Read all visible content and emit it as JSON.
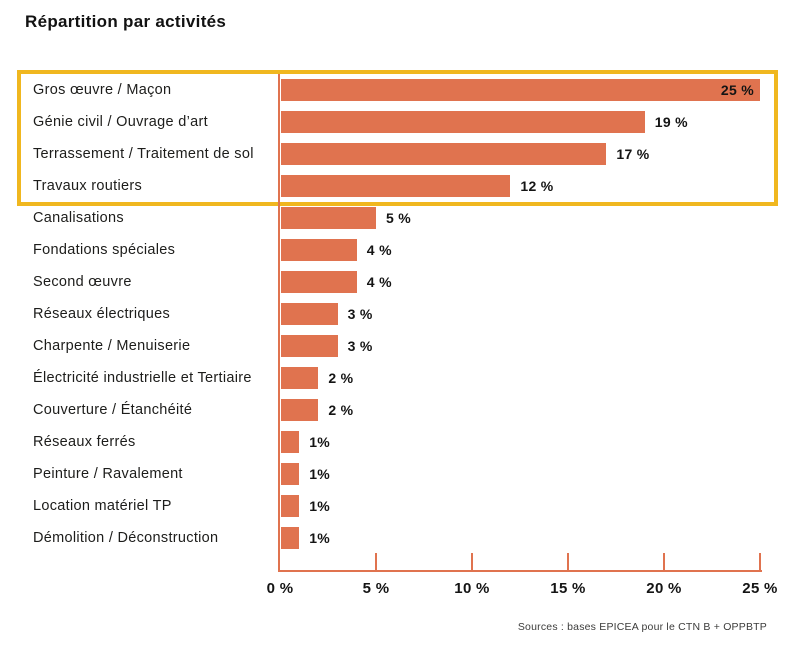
{
  "title": "Répartition par activités",
  "source": "Sources : bases EPICEA pour le CTN B + OPPBTP",
  "colors": {
    "bar": "#E0734F",
    "axis": "#E0734F",
    "highlight_box": "#F0B71F",
    "text": "#1D1D1B"
  },
  "chart_data": {
    "type": "bar",
    "orientation": "horizontal",
    "title": "Répartition par activités",
    "xlabel": "",
    "ylabel": "",
    "xlim": [
      0,
      25
    ],
    "grid": false,
    "legend": false,
    "categories": [
      "Gros œuvre / Maçon",
      "Génie civil / Ouvrage d’art",
      "Terrassement / Traitement de sol",
      "Travaux routiers",
      "Canalisations",
      "Fondations spéciales",
      "Second œuvre",
      "Réseaux électriques",
      "Charpente / Menuiserie",
      "Électricité industrielle et Tertiaire",
      "Couverture / Étanchéité",
      "Réseaux ferrés",
      "Peinture / Ravalement",
      "Location matériel TP",
      "Démolition / Déconstruction"
    ],
    "values": [
      25,
      19,
      17,
      12,
      5,
      4,
      4,
      3,
      3,
      2,
      2,
      1,
      1,
      1,
      1
    ],
    "value_labels": [
      "25 %",
      "19 %",
      "17 %",
      "12 %",
      "5 %",
      "4 %",
      "4 %",
      "3 %",
      "3 %",
      "2 %",
      "2 %",
      "1%",
      "1%",
      "1%",
      "1%"
    ],
    "x_ticks": [
      "0 %",
      "5 %",
      "10 %",
      "15 %",
      "20 %",
      "25 %"
    ],
    "x_tick_values": [
      0,
      5,
      10,
      15,
      20,
      25
    ],
    "highlighted_rows": [
      0,
      1,
      2,
      3
    ],
    "annotations": [
      "Sources : bases EPICEA pour le CTN B + OPPBTP"
    ]
  }
}
